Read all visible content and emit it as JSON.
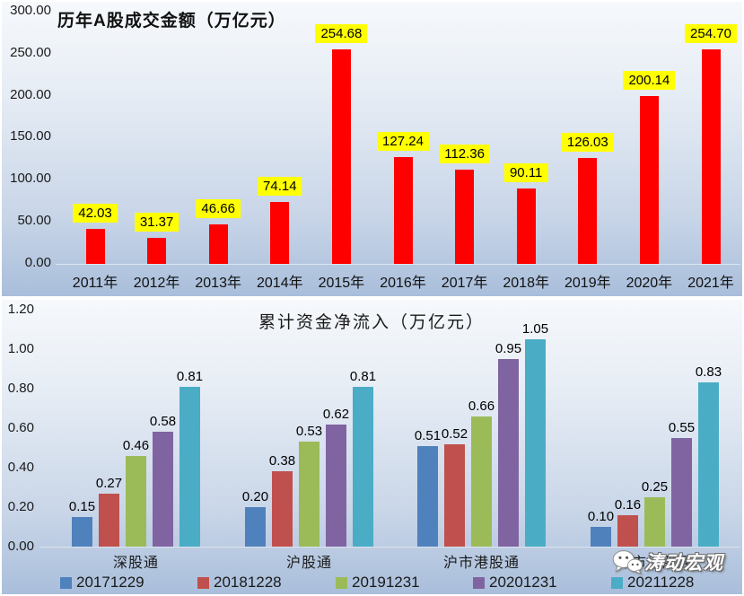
{
  "watermark": {
    "text": "涛动宏观",
    "icon": "wechat-icon"
  },
  "chart_data": [
    {
      "type": "bar",
      "title": "历年A股成交金额（万亿元）",
      "categories": [
        "2011年",
        "2012年",
        "2013年",
        "2014年",
        "2015年",
        "2016年",
        "2017年",
        "2018年",
        "2019年",
        "2020年",
        "2021年"
      ],
      "values": [
        42.03,
        31.37,
        46.66,
        74.14,
        254.68,
        127.24,
        112.36,
        90.11,
        126.03,
        200.14,
        254.7
      ],
      "bar_color": "#ff0000",
      "data_label_bg": "#ffff00",
      "ylim": [
        0,
        300
      ],
      "yticks": [
        "300.00",
        "250.00",
        "200.00",
        "150.00",
        "100.00",
        "50.00",
        "0.00"
      ],
      "grid": false,
      "legend_position": "none"
    },
    {
      "type": "bar",
      "title": "累计资金净流入（万亿元）",
      "categories": [
        "深股通",
        "沪股通",
        "沪市港股通",
        "深市港股通"
      ],
      "series": [
        {
          "name": "20171229",
          "color": "#4f81bd",
          "values": [
            0.15,
            0.2,
            0.51,
            0.1
          ]
        },
        {
          "name": "20181228",
          "color": "#c0504d",
          "values": [
            0.27,
            0.38,
            0.52,
            0.16
          ]
        },
        {
          "name": "20191231",
          "color": "#9bbb59",
          "values": [
            0.46,
            0.53,
            0.66,
            0.25
          ]
        },
        {
          "name": "20201231",
          "color": "#8064a2",
          "values": [
            0.58,
            0.62,
            0.95,
            0.55
          ]
        },
        {
          "name": "20211228",
          "color": "#4bacc6",
          "values": [
            0.81,
            0.81,
            1.05,
            0.83
          ]
        }
      ],
      "ylim": [
        0,
        1.2
      ],
      "yticks": [
        "1.20",
        "1.00",
        "0.80",
        "0.60",
        "0.40",
        "0.20",
        "0.00"
      ],
      "grid": false,
      "legend_position": "bottom"
    }
  ]
}
